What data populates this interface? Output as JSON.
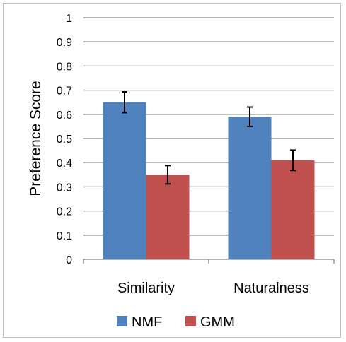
{
  "chart_data": {
    "type": "bar",
    "title": "",
    "xlabel": "",
    "ylabel": "Preference Score",
    "categories": [
      "Similarity",
      "Naturalness"
    ],
    "series": [
      {
        "name": "NMF",
        "color": "#4f81bd",
        "values": [
          0.65,
          0.59
        ],
        "errors": [
          0.043,
          0.04
        ]
      },
      {
        "name": "GMM",
        "color": "#c0504d",
        "values": [
          0.35,
          0.41
        ],
        "errors": [
          0.038,
          0.042
        ]
      }
    ],
    "ylim": [
      0,
      1
    ],
    "yticks": [
      0,
      0.1,
      0.2,
      0.3,
      0.4,
      0.5,
      0.6,
      0.7,
      0.8,
      0.9,
      1
    ],
    "ytick_labels": [
      "0",
      "0.1",
      "0.2",
      "0.3",
      "0.4",
      "0.5",
      "0.6",
      "0.7",
      "0.8",
      "0.9",
      "1"
    ],
    "grid": true,
    "legend": "bottom",
    "error_bars": true,
    "gridline_color": "#868686"
  }
}
